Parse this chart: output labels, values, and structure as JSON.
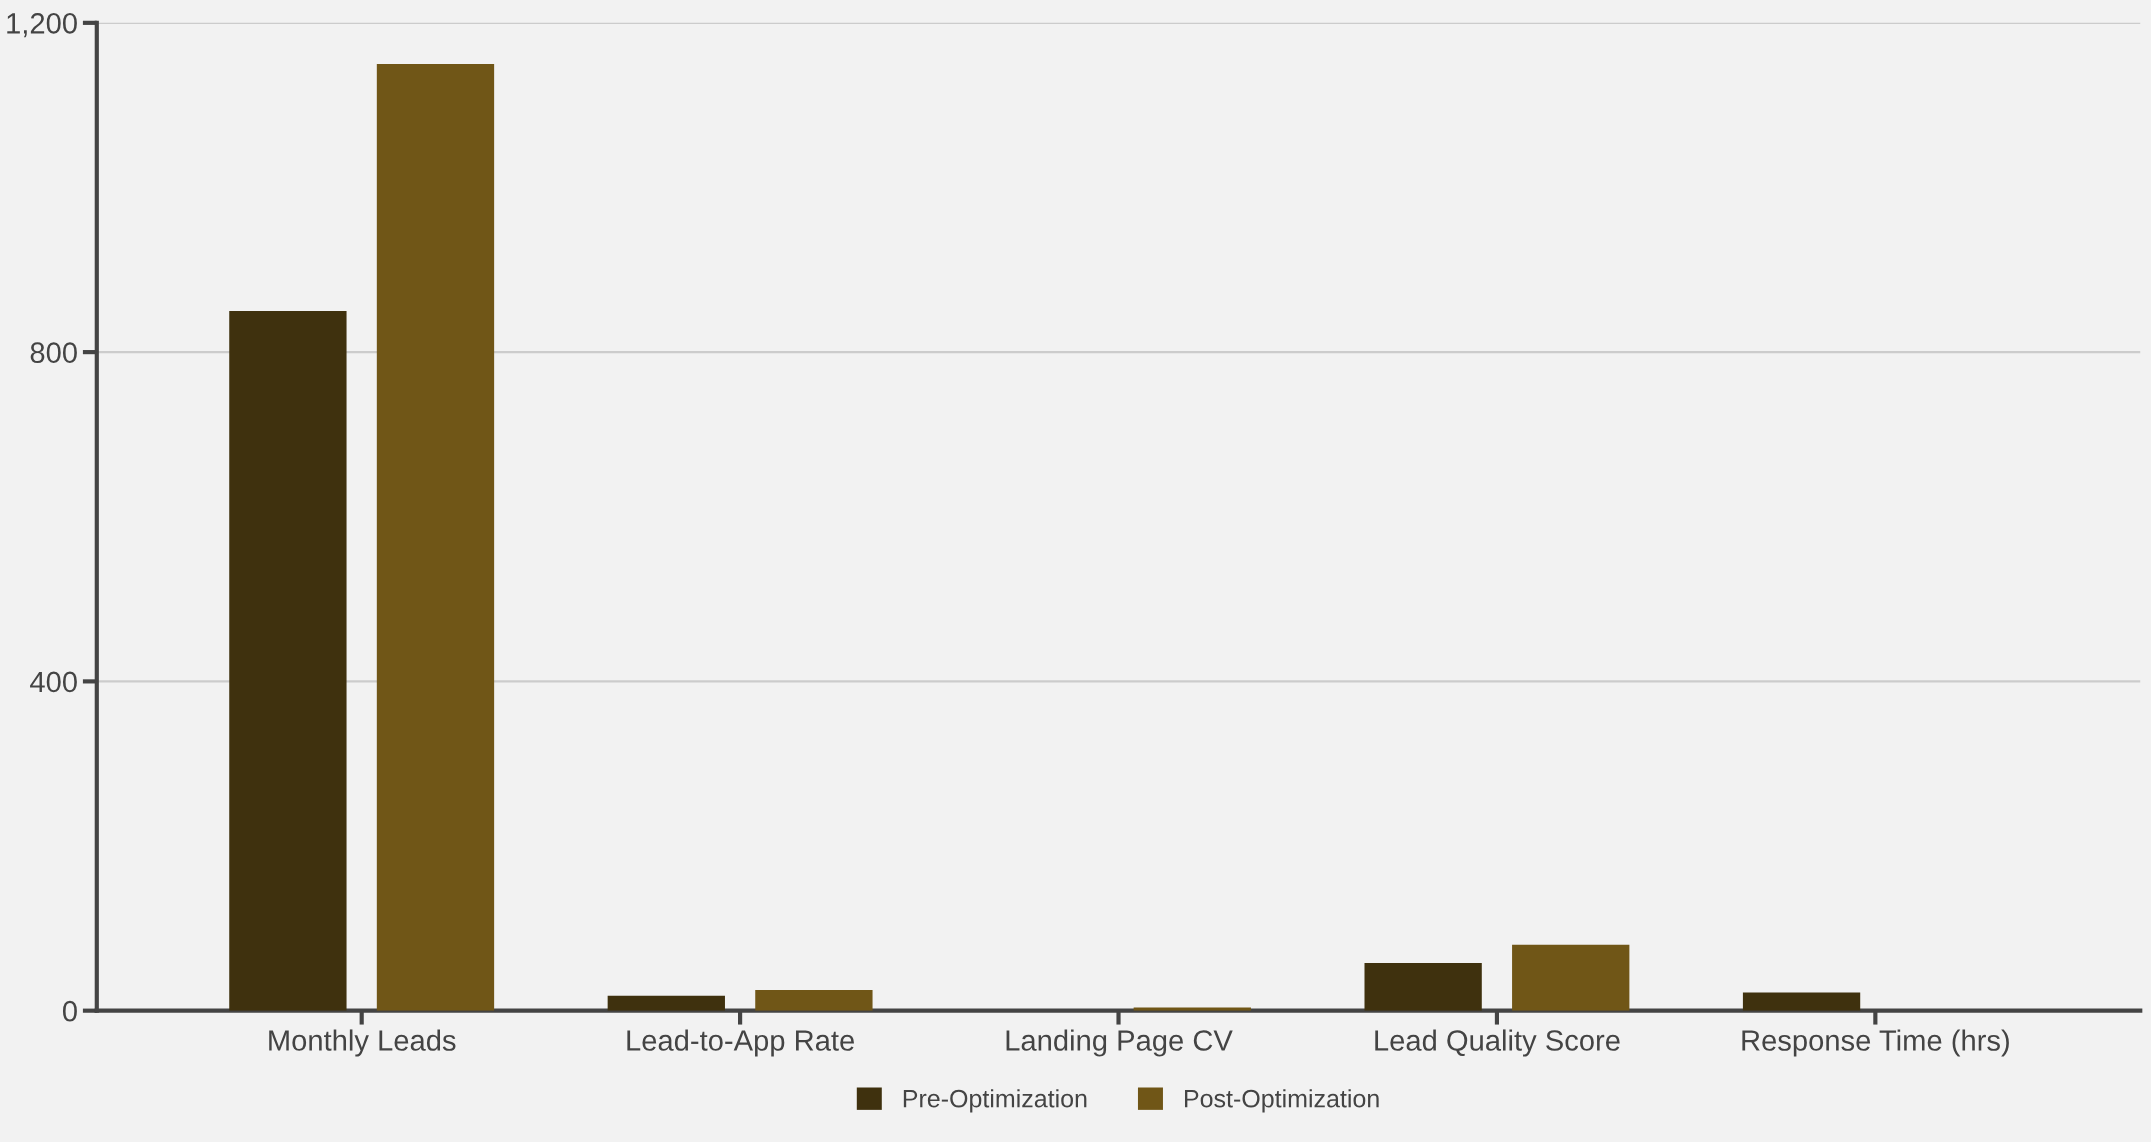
{
  "chart_data": {
    "type": "bar",
    "categories": [
      "Monthly Leads",
      "Lead-to-App Rate",
      "Landing Page CV",
      "Lead Quality Score",
      "Response Time (hrs)"
    ],
    "series": [
      {
        "name": "Pre-Optimization",
        "color": "#3f310e",
        "values": [
          850,
          18,
          0,
          58,
          22
        ]
      },
      {
        "name": "Post-Optimization",
        "color": "#705617",
        "values": [
          1150,
          25,
          4,
          80,
          0
        ]
      }
    ],
    "ylim": [
      0,
      1200
    ],
    "yticks": [
      0,
      400,
      800,
      {
        "value": 1200,
        "label": "1,200"
      }
    ],
    "grid": "y",
    "legend": "bottom"
  }
}
